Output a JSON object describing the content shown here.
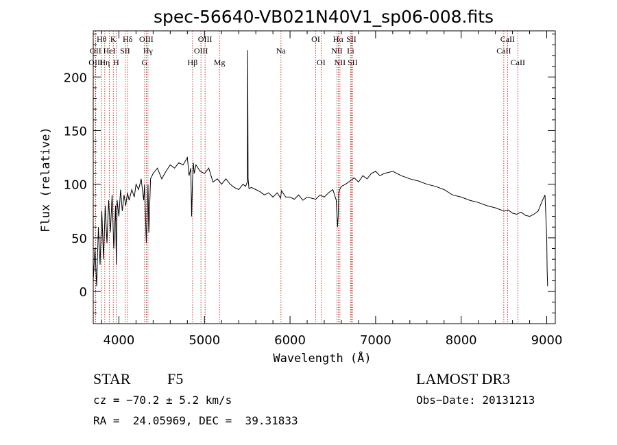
{
  "chart_data": {
    "type": "line",
    "title": "spec-56640-VB021N40V1_sp06-008.fits",
    "xlabel": "Wavelength (Å)",
    "ylabel": "Flux (relative)",
    "xlim": [
      3700,
      9100
    ],
    "ylim": [
      -30,
      243
    ],
    "xticks": [
      4000,
      5000,
      6000,
      7000,
      8000,
      9000
    ],
    "yticks": [
      0,
      50,
      100,
      150,
      200
    ],
    "grid": false,
    "series": [
      {
        "name": "spectrum",
        "x": [
          3700,
          3720,
          3740,
          3760,
          3780,
          3800,
          3820,
          3840,
          3860,
          3880,
          3900,
          3920,
          3940,
          3960,
          3970,
          3980,
          4000,
          4020,
          4040,
          4060,
          4080,
          4100,
          4120,
          4150,
          4180,
          4200,
          4230,
          4260,
          4290,
          4300,
          4320,
          4340,
          4350,
          4370,
          4400,
          4450,
          4500,
          4550,
          4600,
          4650,
          4700,
          4750,
          4800,
          4820,
          4840,
          4850,
          4861,
          4870,
          4880,
          4900,
          4950,
          5000,
          5050,
          5100,
          5150,
          5200,
          5250,
          5300,
          5350,
          5400,
          5450,
          5480,
          5500,
          5505,
          5510,
          5520,
          5550,
          5600,
          5650,
          5700,
          5750,
          5800,
          5850,
          5890,
          5900,
          5950,
          6000,
          6050,
          6100,
          6150,
          6200,
          6250,
          6300,
          6350,
          6400,
          6450,
          6500,
          6540,
          6555,
          6563,
          6570,
          6580,
          6600,
          6650,
          6700,
          6750,
          6800,
          6850,
          6900,
          6950,
          7000,
          7050,
          7100,
          7200,
          7300,
          7400,
          7500,
          7600,
          7700,
          7800,
          7900,
          8000,
          8100,
          8200,
          8300,
          8400,
          8500,
          8550,
          8600,
          8650,
          8700,
          8750,
          8800,
          8850,
          8900,
          8950,
          8980,
          9000,
          9005,
          9010
        ],
        "y": [
          10,
          40,
          5,
          60,
          25,
          75,
          30,
          80,
          45,
          85,
          55,
          90,
          40,
          80,
          25,
          85,
          70,
          95,
          75,
          90,
          80,
          92,
          85,
          95,
          88,
          100,
          95,
          105,
          85,
          100,
          45,
          100,
          55,
          105,
          110,
          115,
          105,
          112,
          118,
          115,
          120,
          118,
          125,
          108,
          115,
          70,
          105,
          120,
          110,
          118,
          112,
          110,
          115,
          102,
          105,
          100,
          105,
          100,
          97,
          95,
          100,
          98,
          102,
          225,
          105,
          96,
          97,
          95,
          93,
          90,
          92,
          88,
          92,
          87,
          94,
          88,
          88,
          86,
          90,
          85,
          88,
          87,
          86,
          90,
          88,
          92,
          95,
          85,
          60,
          70,
          92,
          95,
          98,
          100,
          103,
          106,
          102,
          108,
          105,
          110,
          112,
          108,
          110,
          112,
          108,
          105,
          103,
          100,
          98,
          95,
          90,
          88,
          85,
          83,
          80,
          78,
          75,
          76,
          73,
          72,
          74,
          71,
          70,
          72,
          75,
          85,
          90,
          50,
          20,
          5
        ]
      }
    ],
    "lines": [
      {
        "name": "OII",
        "wavelength": 3727,
        "row": 2
      },
      {
        "name": "OIII",
        "wavelength": 3729,
        "row": 3
      },
      {
        "name": "Hθ",
        "wavelength": 3798,
        "row": 1
      },
      {
        "name": "Hη",
        "wavelength": 3835,
        "row": 3
      },
      {
        "name": "HeI",
        "wavelength": 3889,
        "row": 2
      },
      {
        "name": "K",
        "wavelength": 3934,
        "row": 1
      },
      {
        "name": "H",
        "wavelength": 3968,
        "row": 3
      },
      {
        "name": "SII",
        "wavelength": 4072,
        "row": 2
      },
      {
        "name": "Hδ",
        "wavelength": 4102,
        "row": 1
      },
      {
        "name": "G",
        "wavelength": 4300,
        "row": 3
      },
      {
        "name": "OIII",
        "wavelength": 4320,
        "row": 1
      },
      {
        "name": "Hγ",
        "wavelength": 4340,
        "row": 2
      },
      {
        "name": "Hβ",
        "wavelength": 4861,
        "row": 3
      },
      {
        "name": "OIII",
        "wavelength": 4959,
        "row": 2
      },
      {
        "name": "OIII",
        "wavelength": 5007,
        "row": 1
      },
      {
        "name": "Mg",
        "wavelength": 5175,
        "row": 3
      },
      {
        "name": "Na",
        "wavelength": 5894,
        "row": 2
      },
      {
        "name": "OI",
        "wavelength": 6300,
        "row": 1
      },
      {
        "name": "OI",
        "wavelength": 6363,
        "row": 3
      },
      {
        "name": "NII",
        "wavelength": 6548,
        "row": 2
      },
      {
        "name": "Hα",
        "wavelength": 6563,
        "row": 1
      },
      {
        "name": "NII",
        "wavelength": 6583,
        "row": 3
      },
      {
        "name": "SII",
        "wavelength": 6716,
        "row": 1
      },
      {
        "name": "Li",
        "wavelength": 6708,
        "row": 2
      },
      {
        "name": "SII",
        "wavelength": 6731,
        "row": 3
      },
      {
        "name": "CaII",
        "wavelength": 8498,
        "row": 2
      },
      {
        "name": "CaII",
        "wavelength": 8542,
        "row": 1
      },
      {
        "name": "CaII",
        "wavelength": 8662,
        "row": 3
      }
    ]
  },
  "info": {
    "object_class": "STAR",
    "subclass": "F5",
    "survey": "LAMOST DR3",
    "cz": "cz = −70.2 ± 5.2 km/s",
    "obs_date": "Obs−Date: 20131213",
    "coords": "RA =  24.05969, DEC =  39.31833"
  },
  "colors": {
    "line_marker": "#c00000",
    "spectrum": "#000000",
    "axes": "#000000"
  }
}
